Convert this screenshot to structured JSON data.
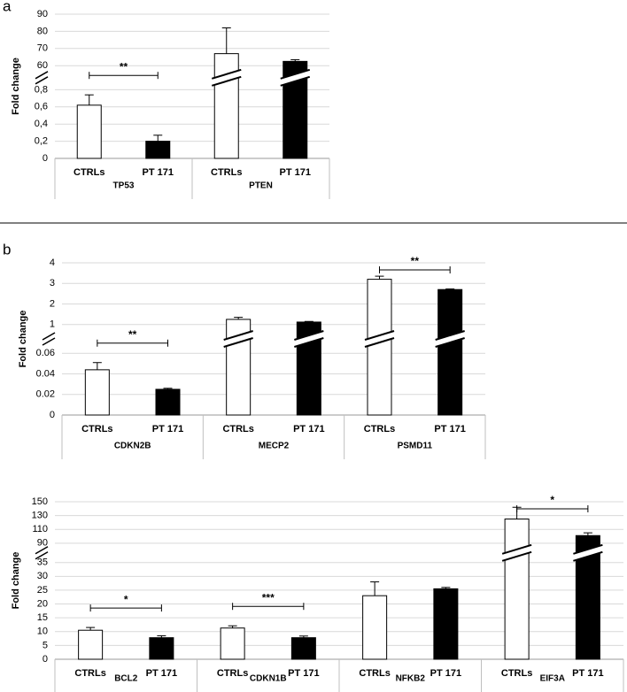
{
  "chart_data": [
    {
      "type": "bar",
      "panel": "a",
      "ylabel": "Fold change",
      "groups": [
        "TP53",
        "PTEN"
      ],
      "categories": [
        "CTRLs",
        "PT 171",
        "CTRLs",
        "PT 171"
      ],
      "values": [
        0.62,
        0.2,
        67,
        62.5
      ],
      "errors": [
        0.12,
        0.07,
        15,
        1
      ],
      "colors": [
        "#ffffff",
        "#000000",
        "#ffffff",
        "#000000"
      ],
      "ylim": [
        0,
        90
      ],
      "ybreak": [
        0.8,
        60
      ],
      "yticks": [
        0,
        {
          "value": 0.2,
          "label": "0,2"
        },
        {
          "value": 0.4,
          "label": "0,4"
        },
        {
          "value": 0.6,
          "label": "0,6"
        },
        {
          "value": 0.8,
          "label": "0,8"
        },
        60,
        70,
        80,
        90
      ],
      "grid": true,
      "annotations": [
        {
          "text": "**",
          "bars": [
            0,
            1
          ]
        }
      ]
    },
    {
      "type": "bar",
      "panel": "b",
      "ylabel": "Fold change",
      "groups": [
        "CDKN2B",
        "MECP2",
        "PSMD11"
      ],
      "categories": [
        "CTRLs",
        "PT 171",
        "CTRLs",
        "PT 171",
        "CTRLs",
        "PT 171"
      ],
      "values": [
        0.044,
        0.025,
        1.25,
        1.12,
        3.2,
        2.7
      ],
      "errors": [
        0.007,
        0.001,
        0.1,
        0.03,
        0.15,
        0.03
      ],
      "colors": [
        "#ffffff",
        "#000000",
        "#ffffff",
        "#000000",
        "#ffffff",
        "#000000"
      ],
      "ylim": [
        0,
        4
      ],
      "ybreak": [
        0.06,
        1
      ],
      "yticks": [
        0,
        0.02,
        0.04,
        0.06,
        1,
        2,
        3,
        4
      ],
      "grid": true,
      "annotations": [
        {
          "text": "**",
          "bars": [
            0,
            1
          ]
        },
        {
          "text": "**",
          "bars": [
            4,
            5
          ]
        }
      ]
    },
    {
      "type": "bar",
      "ylabel": "Fold change",
      "groups": [
        "BCL2",
        "CDKN1B",
        "NFKB2",
        "EIF3A"
      ],
      "categories": [
        "CTRLs",
        "PT 171",
        "CTRLs",
        "PT 171",
        "CTRLs",
        "PT 171",
        "CTRLs",
        "PT 171"
      ],
      "values": [
        10.5,
        7.8,
        11.3,
        7.8,
        23,
        25.5,
        125,
        101
      ],
      "errors": [
        1,
        0.7,
        0.8,
        0.6,
        5,
        0.5,
        17,
        4
      ],
      "colors": [
        "#ffffff",
        "#000000",
        "#ffffff",
        "#000000",
        "#ffffff",
        "#000000",
        "#ffffff",
        "#000000"
      ],
      "ylim": [
        0,
        150
      ],
      "ybreak": [
        35,
        90
      ],
      "yticks": [
        0,
        5,
        10,
        15,
        20,
        25,
        30,
        35,
        90,
        110,
        130,
        150
      ],
      "grid": true,
      "annotations": [
        {
          "text": "*",
          "bars": [
            0,
            1
          ]
        },
        {
          "text": "***",
          "bars": [
            2,
            3
          ]
        },
        {
          "text": "*",
          "bars": [
            6,
            7
          ]
        }
      ]
    }
  ]
}
